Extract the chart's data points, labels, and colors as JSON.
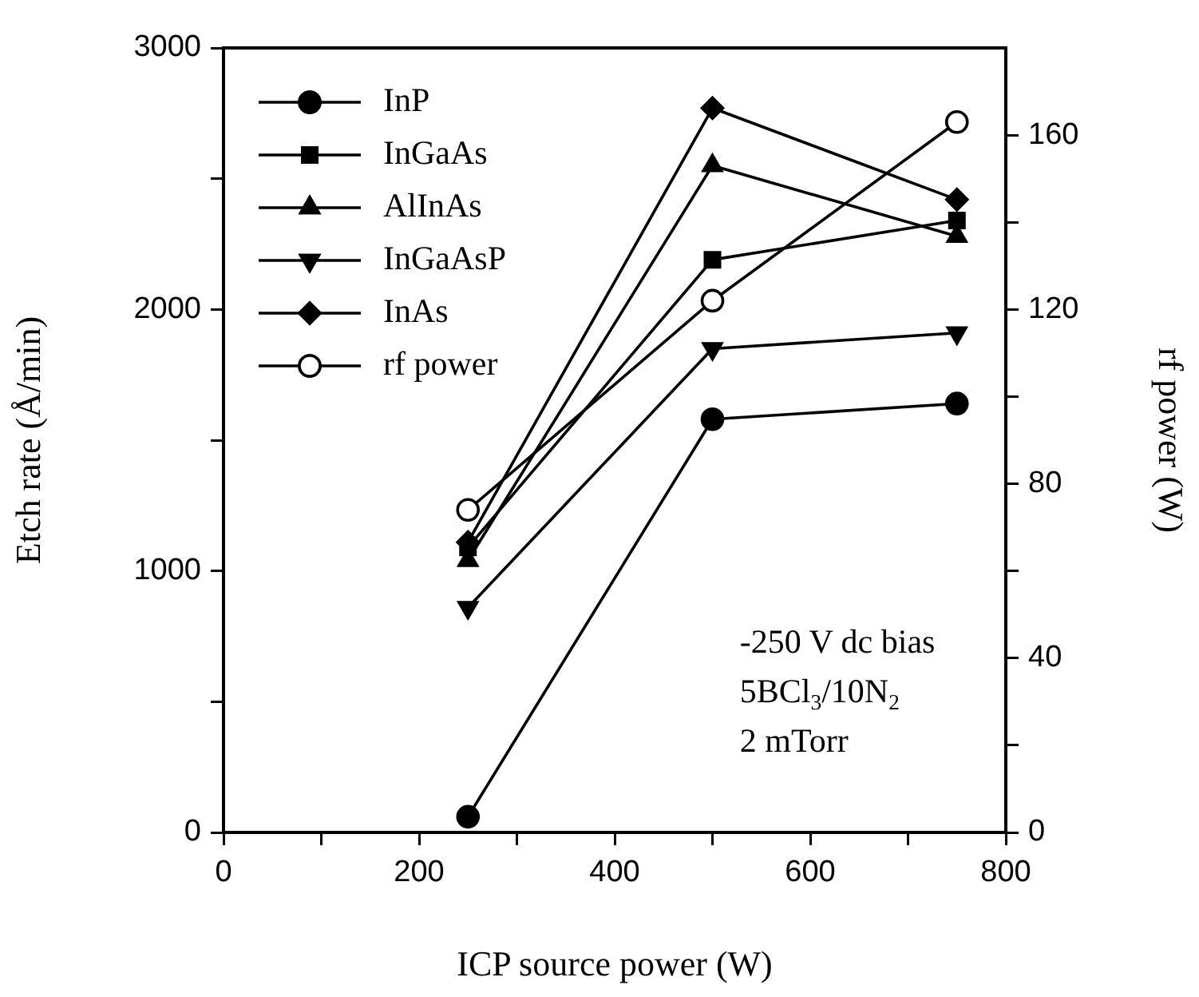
{
  "chart_data": {
    "type": "line",
    "xlabel": "ICP source power (W)",
    "ylabel": "Etch rate (Å/min)",
    "y2label": "rf power (W)",
    "x": [
      250,
      500,
      750
    ],
    "xlim": [
      0,
      800
    ],
    "xticks": [
      0,
      {
        "value": 100,
        "label": null
      },
      200,
      {
        "value": 300,
        "label": null
      },
      400,
      {
        "value": 500,
        "label": null
      },
      600,
      {
        "value": 700,
        "label": null
      },
      800
    ],
    "ylim": [
      0,
      3000
    ],
    "yticks": [
      0,
      {
        "value": 500,
        "label": null
      },
      1000,
      {
        "value": 1500,
        "label": null
      },
      2000,
      {
        "value": 2500,
        "label": null
      },
      3000
    ],
    "y2lim": [
      0,
      180
    ],
    "y2ticks": [
      0,
      {
        "value": 20,
        "label": null
      },
      40,
      {
        "value": 60,
        "label": null
      },
      80,
      {
        "value": 100,
        "label": null
      },
      120,
      {
        "value": 140,
        "label": null
      },
      160
    ],
    "grid": false,
    "legend": "top left",
    "line_style": "solid",
    "series": [
      {
        "name": "InP",
        "color": "#000000",
        "marker": "circle",
        "values": [
          60,
          1580,
          1640
        ]
      },
      {
        "name": "InGaAs",
        "color": "#000000",
        "marker": "square",
        "values": [
          1090,
          2190,
          2340
        ]
      },
      {
        "name": "AlInAs",
        "color": "#000000",
        "marker": "triangle",
        "values": [
          1040,
          2550,
          2280
        ]
      },
      {
        "name": "InGaAsP",
        "color": "#000000",
        "marker": "triangle-down",
        "values": [
          860,
          1850,
          1910
        ]
      },
      {
        "name": "InAs",
        "color": "#000000",
        "marker": "diamond",
        "values": [
          1110,
          2770,
          2420
        ]
      },
      {
        "name": "rf power",
        "color": "#000000",
        "marker": "open-circle",
        "axis": "y2",
        "values": [
          74,
          122,
          163
        ]
      }
    ],
    "annotations": [
      "-250 V dc bias",
      "5BCl$_{3}$/10N$_{2}$",
      "2 mTorr"
    ]
  }
}
